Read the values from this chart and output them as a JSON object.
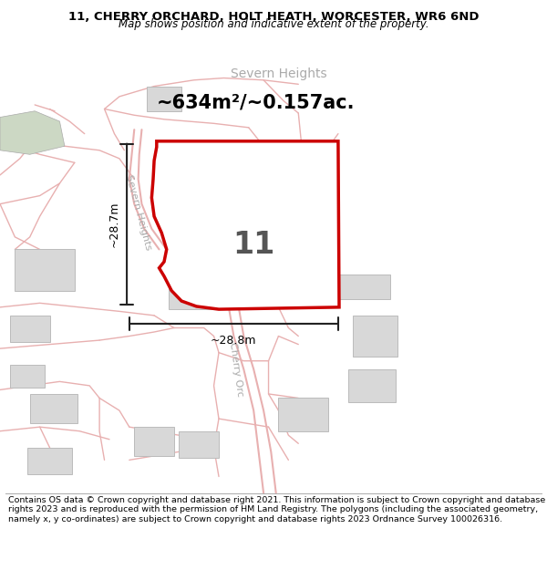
{
  "title_line1": "11, CHERRY ORCHARD, HOLT HEATH, WORCESTER, WR6 6ND",
  "title_line2": "Map shows position and indicative extent of the property.",
  "area_text": "~634m²/~0.157ac.",
  "label_11": "11",
  "dim_vertical": "~28.7m",
  "dim_horizontal": "~28.8m",
  "road_label_sh": "Severn Heights",
  "road_label_sh_top": "Severn Heights",
  "road_label_co": "Cherry Orc",
  "footer_text": "Contains OS data © Crown copyright and database right 2021. This information is subject to Crown copyright and database rights 2023 and is reproduced with the permission of HM Land Registry. The polygons (including the associated geometry, namely x, y co-ordinates) are subject to Crown copyright and database rights 2023 Ordnance Survey 100026316.",
  "map_bg": "#faf5f5",
  "property_fill": "#ffffff",
  "property_edge": "#cc0000",
  "road_color": "#e8b0b0",
  "building_color": "#d8d8d8",
  "building_edge": "#bbbbbb",
  "dim_line_color": "#222222",
  "label_color": "#aaaaaa",
  "title_fontsize": 9.5,
  "subtitle_fontsize": 8.5,
  "area_fontsize": 15,
  "num_fontsize": 24
}
